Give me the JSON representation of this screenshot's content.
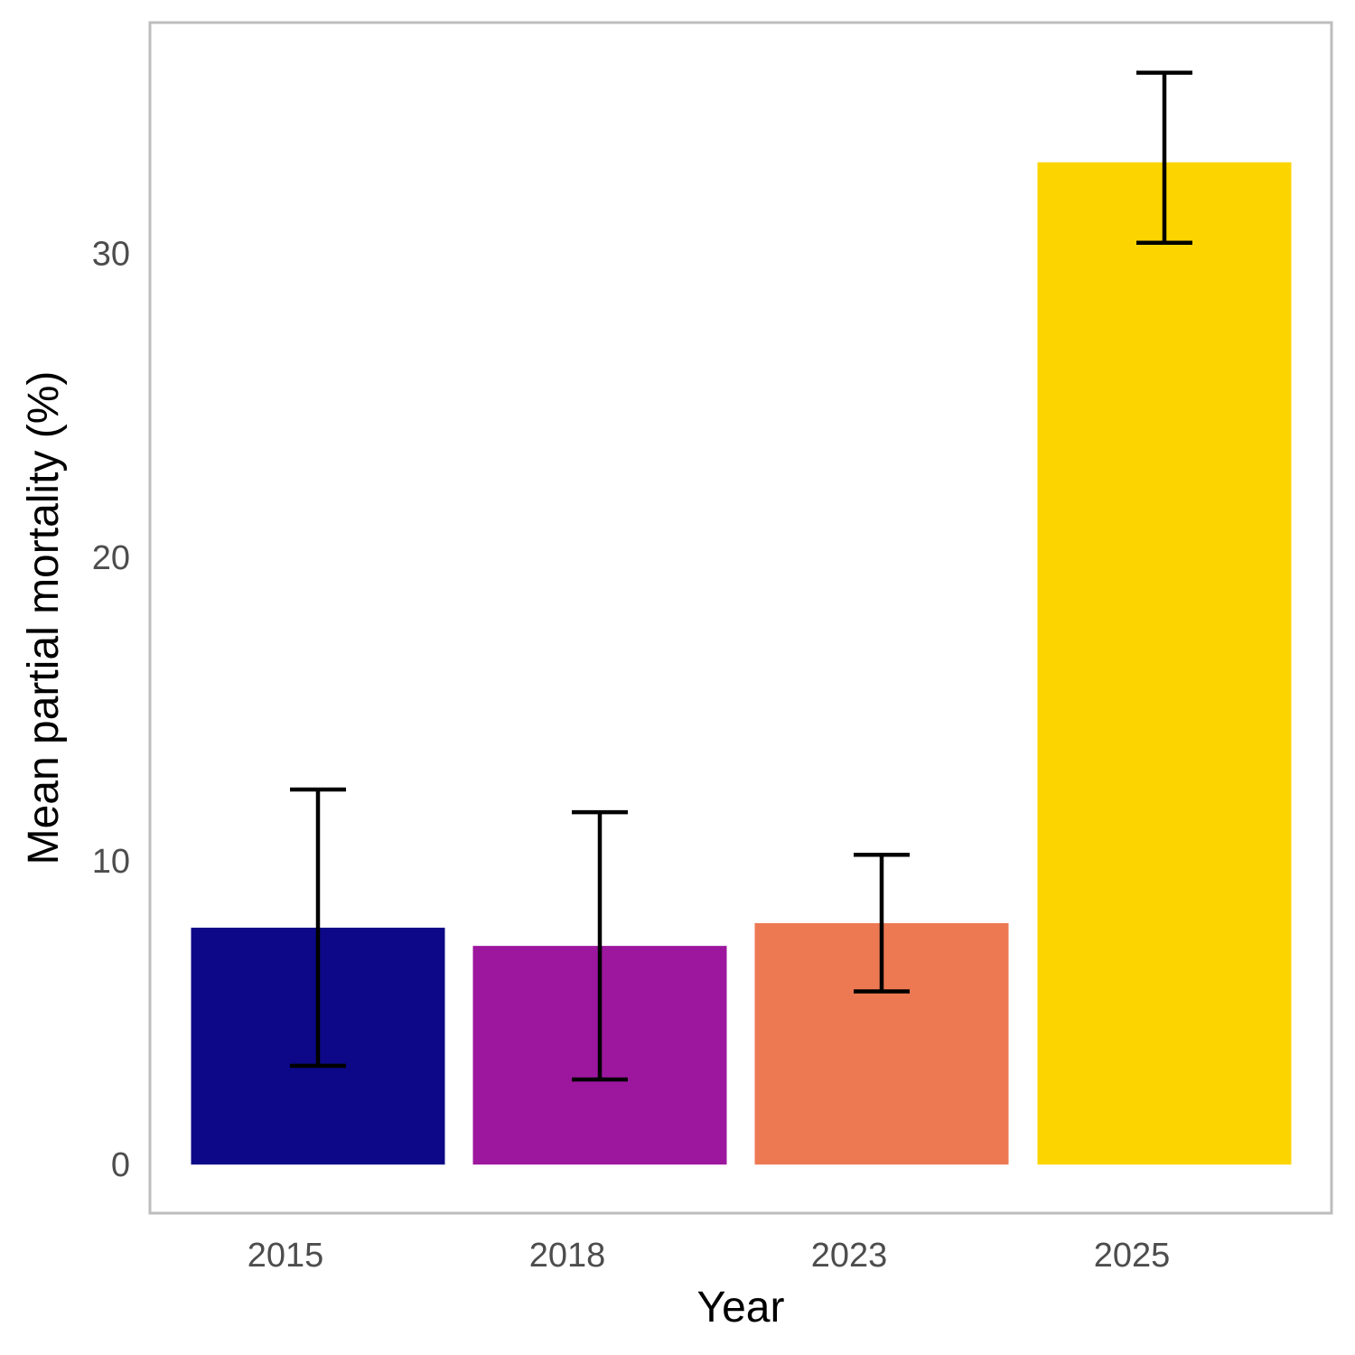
{
  "chart_data": {
    "type": "bar",
    "categories": [
      "2015",
      "2018",
      "2023",
      "2025"
    ],
    "values": [
      7.8,
      7.2,
      7.95,
      33.0
    ],
    "error_low": [
      3.25,
      2.8,
      5.7,
      30.35
    ],
    "error_high": [
      12.35,
      11.6,
      10.2,
      35.95
    ],
    "colors": [
      "#0d0887",
      "#9c179e",
      "#ed7953",
      "#fcd500"
    ],
    "xlabel": "Year",
    "ylabel": "Mean partial mortality (%)",
    "yticks": [
      0,
      10,
      20,
      30
    ],
    "ylim": [
      -1.6,
      37.6
    ],
    "grid": false,
    "legend": "none",
    "error_bar_color": "#000000",
    "frame_color": "#bdbdbd"
  }
}
